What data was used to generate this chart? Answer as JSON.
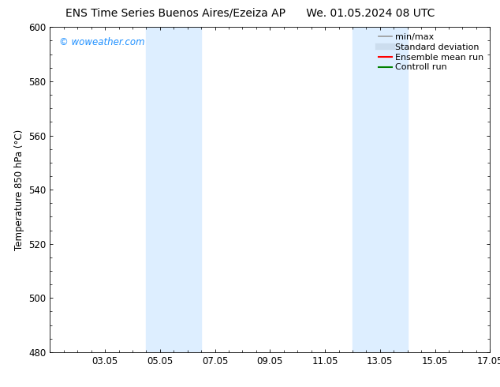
{
  "title": "ENS Time Series Buenos Aires/Ezeiza AP      We. 01.05.2024 08 UTC",
  "title_left": "ENS Time Series Buenos Aires/Ezeiza AP",
  "title_right": "We. 01.05.2024 08 UTC",
  "ylabel": "Temperature 850 hPa (°C)",
  "xtick_labels": [
    "03.05",
    "05.05",
    "07.05",
    "09.05",
    "11.05",
    "13.05",
    "15.05",
    "17.05"
  ],
  "xtick_positions": [
    2,
    4,
    6,
    8,
    10,
    12,
    14,
    16
  ],
  "ylim": [
    480,
    600
  ],
  "ytick_positions": [
    480,
    500,
    520,
    540,
    560,
    580,
    600
  ],
  "ytick_labels": [
    "480",
    "500",
    "520",
    "540",
    "560",
    "580",
    "600"
  ],
  "shaded_bands": [
    {
      "x_start": 3.5,
      "x_end": 5.5,
      "color": "#ddeeff"
    },
    {
      "x_start": 11.0,
      "x_end": 13.0,
      "color": "#ddeeff"
    }
  ],
  "watermark": "© woweather.com",
  "watermark_color": "#1e90ff",
  "legend_items": [
    {
      "label": "min/max",
      "color": "#999999",
      "lw": 1.2,
      "style": "solid"
    },
    {
      "label": "Standard deviation",
      "color": "#ccddee",
      "lw": 6,
      "style": "solid"
    },
    {
      "label": "Ensemble mean run",
      "color": "#ff0000",
      "lw": 1.5,
      "style": "solid"
    },
    {
      "label": "Controll run",
      "color": "#008000",
      "lw": 1.5,
      "style": "solid"
    }
  ],
  "bg_color": "#ffffff",
  "font_size_title": 10,
  "font_size_axis": 8.5,
  "font_size_tick": 8.5,
  "font_size_legend": 8,
  "font_size_watermark": 8.5
}
